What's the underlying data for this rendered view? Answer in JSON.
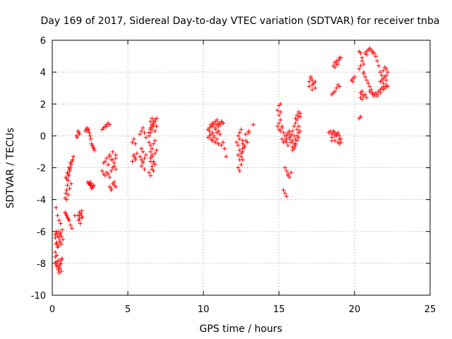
{
  "chart_data": {
    "type": "scatter",
    "title": "Day 169 of 2017, Sidereal Day-to-day VTEC variation (SDTVAR) for receiver tnba",
    "xlabel": "GPS time / hours",
    "ylabel": "SDTVAR / TECUs",
    "xlim": [
      0,
      25
    ],
    "ylim": [
      -10,
      6
    ],
    "xticks": [
      0,
      5,
      10,
      15,
      20,
      25
    ],
    "yticks": [
      -10,
      -8,
      -6,
      -4,
      -2,
      0,
      2,
      4,
      6
    ],
    "grid": true,
    "marker": "+",
    "color": "#ff0000",
    "series": [
      {
        "x": [
          0.2,
          0.25,
          0.3,
          0.35,
          0.4,
          0.45,
          0.5,
          0.55,
          0.6,
          0.65,
          0.2,
          0.3,
          0.4,
          0.5,
          0.6,
          0.3,
          0.35,
          0.4,
          0.45,
          0.5,
          0.55,
          0.2,
          0.25,
          0.3,
          0.4,
          0.5,
          0.6,
          0.2,
          0.3,
          0.4,
          0.5,
          0.6,
          0.7,
          0.25,
          0.35,
          0.45,
          0.55,
          0.2,
          0.3,
          0.45,
          0.55,
          0.65,
          0.25,
          0.35,
          0.5,
          0.85,
          0.9,
          0.95,
          1.0,
          1.05,
          1.1,
          1.15,
          1.2,
          1.25,
          1.3,
          1.35,
          1.4,
          1.5,
          0.9,
          1.0,
          1.1,
          1.2,
          1.3,
          0.95,
          1.05,
          1.15,
          1.25,
          0.85,
          0.95,
          1.05,
          0.9,
          1.0,
          1.1,
          1.2,
          0.95,
          1.05,
          1.15,
          1.6,
          1.7,
          1.8,
          1.65,
          1.75,
          1.8,
          1.7,
          1.8,
          1.9,
          2.0,
          1.75,
          1.85,
          1.95,
          1.8,
          1.9,
          1.95,
          2.2,
          2.25,
          2.3,
          2.35,
          2.4,
          2.45,
          2.5,
          2.55,
          2.6,
          2.65,
          2.7,
          2.75,
          2.8,
          2.35,
          2.45,
          2.55,
          2.65,
          2.4,
          2.5,
          2.6,
          2.7,
          2.75,
          2.5,
          2.6,
          3.3,
          3.4,
          3.5,
          3.6,
          3.7,
          3.8,
          3.4,
          3.6,
          3.3,
          3.4,
          3.5,
          3.6,
          3.7,
          3.8,
          3.9,
          4.0,
          4.1,
          4.2,
          3.5,
          3.7,
          3.9,
          4.1,
          3.4,
          3.6,
          3.8,
          4.0,
          4.2,
          3.8,
          3.9,
          4.0,
          4.1,
          4.2,
          3.9,
          4.1,
          3.8,
          4.0,
          4.2,
          5.3,
          5.4,
          5.5,
          5.4,
          5.5,
          5.3,
          5.4,
          5.5,
          5.6,
          5.8,
          5.9,
          6.0,
          6.1,
          5.9,
          6.0,
          5.8,
          5.9,
          6.0,
          6.1,
          6.2,
          5.9,
          6.1,
          6.0,
          6.2,
          6.4,
          6.5,
          6.6,
          6.7,
          6.8,
          6.5,
          6.6,
          6.7,
          6.8,
          6.9,
          6.4,
          6.5,
          6.6,
          6.7,
          6.8,
          6.5,
          6.6,
          6.7,
          6.8,
          6.9,
          6.5,
          6.6,
          6.7,
          6.8,
          6.4,
          6.5,
          6.6,
          6.7,
          6.5,
          6.6,
          6.7,
          6.5,
          6.6,
          6.4,
          6.5,
          6.6,
          6.7,
          6.8,
          6.9,
          10.3,
          10.4,
          10.5,
          10.6,
          10.7,
          10.8,
          10.9,
          11.0,
          11.1,
          11.2,
          11.3,
          10.4,
          10.5,
          10.6,
          10.7,
          10.8,
          10.9,
          11.0,
          11.1,
          10.3,
          10.4,
          10.5,
          10.6,
          10.7,
          10.8,
          10.9,
          11.0,
          10.5,
          10.6,
          10.7,
          10.8,
          10.9,
          11.0,
          11.1,
          11.2,
          11.3,
          10.6,
          10.8,
          11.0,
          11.2,
          11.3,
          11.4,
          11.5,
          12.2,
          12.3,
          12.4,
          12.5,
          12.6,
          12.7,
          12.8,
          12.3,
          12.4,
          12.5,
          12.6,
          12.7,
          12.3,
          12.4,
          12.5,
          12.6,
          12.4,
          12.5,
          12.3,
          12.4,
          12.6,
          12.7,
          12.9,
          13.0,
          12.6,
          12.8,
          13.0,
          13.3,
          14.9,
          15.0,
          15.1,
          15.0,
          15.1,
          14.9,
          15.0,
          15.1,
          15.2,
          15.0,
          15.1,
          15.2,
          15.3,
          15.4,
          15.5,
          15.6,
          15.7,
          15.8,
          15.9,
          16.0,
          15.4,
          15.5,
          15.6,
          15.7,
          15.8,
          15.9,
          16.0,
          16.1,
          15.5,
          15.6,
          15.7,
          15.8,
          15.9,
          16.0,
          15.4,
          15.5,
          15.6,
          15.7,
          15.8,
          15.3,
          15.4,
          15.5,
          15.6,
          15.2,
          15.3,
          16.0,
          16.1,
          16.2,
          16.3,
          16.4,
          16.1,
          16.2,
          16.3,
          16.4,
          16.2,
          16.3,
          16.1,
          16.2,
          16.3,
          16.4,
          15.9,
          16.0,
          16.1,
          16.2,
          16.3,
          17.0,
          17.1,
          17.2,
          17.3,
          17.4,
          17.1,
          17.2,
          17.3,
          17.0,
          17.2,
          17.4,
          18.3,
          18.4,
          18.5,
          18.6,
          18.7,
          18.8,
          18.9,
          19.0,
          19.1,
          18.5,
          18.7,
          18.9,
          19.0,
          18.5,
          18.6,
          18.7,
          18.8,
          18.9,
          19.0,
          19.1,
          18.6,
          18.8,
          19.0,
          18.6,
          18.7,
          18.8,
          18.9,
          19.0,
          19.1,
          18.7,
          18.8,
          18.9,
          19.0,
          18.5,
          18.6,
          18.7,
          18.8,
          18.9,
          19.0,
          19.8,
          19.9,
          20.0,
          19.9,
          20.3,
          20.4,
          20.5,
          20.6,
          20.3,
          20.4,
          20.5,
          20.6,
          20.4,
          20.5,
          20.3,
          20.4,
          20.7,
          20.8,
          20.9,
          21.0,
          21.1,
          21.2,
          21.3,
          21.4,
          20.8,
          21.0,
          21.2,
          21.4,
          21.5,
          21.6,
          21.7,
          21.8,
          21.9,
          22.0,
          22.1,
          22.2,
          21.8,
          21.9,
          22.0,
          22.1,
          21.7,
          21.9,
          22.1,
          21.0,
          21.1,
          21.2,
          21.3,
          21.4,
          21.5,
          21.6,
          21.7,
          21.8,
          21.9,
          22.0,
          22.1,
          22.2,
          20.6,
          20.7,
          20.8,
          20.9,
          21.0,
          21.1,
          21.2,
          21.3,
          21.5,
          21.7,
          21.9,
          22.1,
          20.5,
          20.6,
          20.7,
          20.8,
          20.4,
          20.5
        ],
        "y": [
          -6.2,
          -6.0,
          -6.1,
          -6.3,
          -6.0,
          -6.4,
          -6.2,
          -6.1,
          -6.3,
          -5.9,
          -8.0,
          -8.2,
          -8.4,
          -8.3,
          -8.5,
          -8.1,
          -7.9,
          -8.2,
          -8.6,
          -8.3,
          -8.0,
          -7.6,
          -7.9,
          -8.2,
          -8.4,
          -8.1,
          -7.8,
          -6.4,
          -6.7,
          -6.9,
          -6.6,
          -6.8,
          -6.5,
          -4.5,
          -5.0,
          -5.3,
          -5.5,
          -7.3,
          -7.5,
          -7.8,
          -8.0,
          -7.7,
          -6.8,
          -7.0,
          -6.7,
          -3.9,
          -3.6,
          -3.4,
          -3.1,
          -2.8,
          -2.5,
          -2.2,
          -2.0,
          -1.8,
          -1.6,
          -1.5,
          -1.3,
          -5.0,
          -4.9,
          -5.1,
          -5.3,
          -5.6,
          -5.8,
          -4.0,
          -3.7,
          -3.3,
          -3.0,
          -4.8,
          -5.0,
          -5.2,
          -2.6,
          -2.3,
          -2.0,
          -1.7,
          -2.7,
          -2.4,
          -2.1,
          0.0,
          0.3,
          0.1,
          -0.1,
          0.2,
          -4.8,
          -5.0,
          -5.2,
          -4.9,
          -5.1,
          -5.3,
          -5.5,
          -4.7,
          -5.0,
          -4.9,
          -5.1,
          0.3,
          0.4,
          0.5,
          0.3,
          0.4,
          0.2,
          0.0,
          -0.2,
          -0.5,
          -0.6,
          -0.7,
          -0.8,
          -0.9,
          -2.9,
          -3.0,
          -3.1,
          -3.2,
          -3.0,
          -3.1,
          -3.3,
          -3.2,
          -3.1,
          -2.9,
          -3.0,
          0.4,
          0.5,
          0.6,
          0.7,
          0.8,
          0.7,
          0.5,
          0.6,
          -2.2,
          -2.4,
          -2.5,
          -2.3,
          -2.4,
          -2.6,
          -2.2,
          -2.0,
          -1.9,
          -2.1,
          -1.6,
          -1.8,
          -1.5,
          -1.7,
          -1.7,
          -1.4,
          -1.3,
          -1.5,
          -1.2,
          -3.2,
          -3.3,
          -3.0,
          -3.1,
          -3.2,
          -3.4,
          -2.9,
          -1.2,
          -1.0,
          -1.4,
          -0.4,
          -0.2,
          -0.5,
          -1.2,
          -1.4,
          -1.6,
          -1.3,
          -1.5,
          -1.1,
          0.1,
          0.3,
          0.5,
          0.2,
          -0.8,
          -1.0,
          -1.3,
          -1.5,
          -1.7,
          -1.4,
          -1.2,
          -1.9,
          -2.1,
          -1.6,
          -0.1,
          0.2,
          0.4,
          0.6,
          0.8,
          1.0,
          0.5,
          0.7,
          0.9,
          0.3,
          0.6,
          -0.4,
          -0.6,
          -0.8,
          -0.5,
          -0.3,
          -1.0,
          -1.3,
          -1.6,
          -1.1,
          -0.9,
          -1.6,
          -1.9,
          -2.2,
          -1.8,
          -2.3,
          -2.5,
          -2.1,
          -1.7,
          0.9,
          1.1,
          0.6,
          -1.4,
          -1.2,
          0.0,
          0.2,
          0.4,
          0.7,
          0.9,
          1.1,
          0.4,
          0.5,
          0.7,
          0.6,
          0.8,
          0.5,
          0.7,
          0.6,
          0.8,
          0.9,
          0.8,
          0.3,
          0.1,
          0.2,
          0.0,
          0.4,
          0.2,
          0.3,
          0.1,
          -0.1,
          0.0,
          -0.2,
          -0.3,
          -0.1,
          -0.4,
          -0.2,
          -0.5,
          0.6,
          0.8,
          0.7,
          0.9,
          1.0,
          0.8,
          0.7,
          0.9,
          0.8,
          -0.3,
          -0.4,
          -0.5,
          -0.6,
          -0.4,
          -0.8,
          -1.3,
          -0.4,
          -0.6,
          -0.9,
          -1.1,
          -0.8,
          -0.6,
          -0.3,
          -1.2,
          -1.5,
          -1.3,
          -1.0,
          -0.7,
          -2.0,
          -2.2,
          -1.8,
          -1.5,
          0.2,
          0.4,
          0.0,
          -0.2,
          -0.5,
          -0.7,
          -0.4,
          0.2,
          -0.3,
          0.1,
          0.3,
          0.7,
          1.6,
          1.9,
          2.0,
          1.3,
          1.5,
          0.6,
          0.4,
          0.3,
          0.5,
          0.8,
          1.0,
          0.6,
          0.2,
          0.0,
          -0.2,
          0.1,
          0.3,
          0.0,
          -0.3,
          -0.5,
          -0.3,
          -0.4,
          -0.6,
          -0.2,
          -0.4,
          -0.7,
          -0.8,
          -0.6,
          0.0,
          0.2,
          -0.1,
          0.1,
          0.3,
          0.0,
          -2.0,
          -2.2,
          -2.4,
          -2.6,
          -2.3,
          -3.4,
          -3.6,
          -3.8,
          -2.5,
          -0.2,
          -0.4,
          0.6,
          0.8,
          1.0,
          1.2,
          1.4,
          1.1,
          1.3,
          1.5,
          1.2,
          0.4,
          0.6,
          -0.2,
          0.0,
          0.2,
          0.3,
          -0.9,
          -0.7,
          -0.5,
          -0.3,
          -0.1,
          3.4,
          3.6,
          3.2,
          3.3,
          3.0,
          3.7,
          3.5,
          3.3,
          3.1,
          2.9,
          3.4,
          0.2,
          0.3,
          0.1,
          0.2,
          0.0,
          0.1,
          0.2,
          0.0,
          -0.2,
          -0.1,
          -0.3,
          -0.4,
          -0.5,
          -0.3,
          0.3,
          0.2,
          0.0,
          0.1,
          -0.2,
          -0.4,
          0.3,
          0.1,
          -0.2,
          4.4,
          4.6,
          4.7,
          4.5,
          4.8,
          4.9,
          4.3,
          4.5,
          4.7,
          4.9,
          2.6,
          2.7,
          2.8,
          3.0,
          3.2,
          3.1,
          3.5,
          3.6,
          3.7,
          3.4,
          5.3,
          5.2,
          4.9,
          4.5,
          4.2,
          4.4,
          4.7,
          4.0,
          2.4,
          2.6,
          1.1,
          1.2,
          5.2,
          5.3,
          5.4,
          5.5,
          5.4,
          5.3,
          5.2,
          5.0,
          5.1,
          5.4,
          5.2,
          5.0,
          4.7,
          4.4,
          4.0,
          3.8,
          4.1,
          4.3,
          4.2,
          4.0,
          3.5,
          3.6,
          3.7,
          3.8,
          3.4,
          3.3,
          3.5,
          2.8,
          2.7,
          2.6,
          2.5,
          2.7,
          2.6,
          2.8,
          2.9,
          3.0,
          3.1,
          3.0,
          3.2,
          3.1,
          3.9,
          3.7,
          3.5,
          3.3,
          3.1,
          2.9,
          2.7,
          2.6,
          2.5,
          2.7,
          2.9,
          3.1,
          2.3,
          2.5,
          2.6,
          2.4,
          2.7,
          2.8
        ]
      }
    ]
  }
}
